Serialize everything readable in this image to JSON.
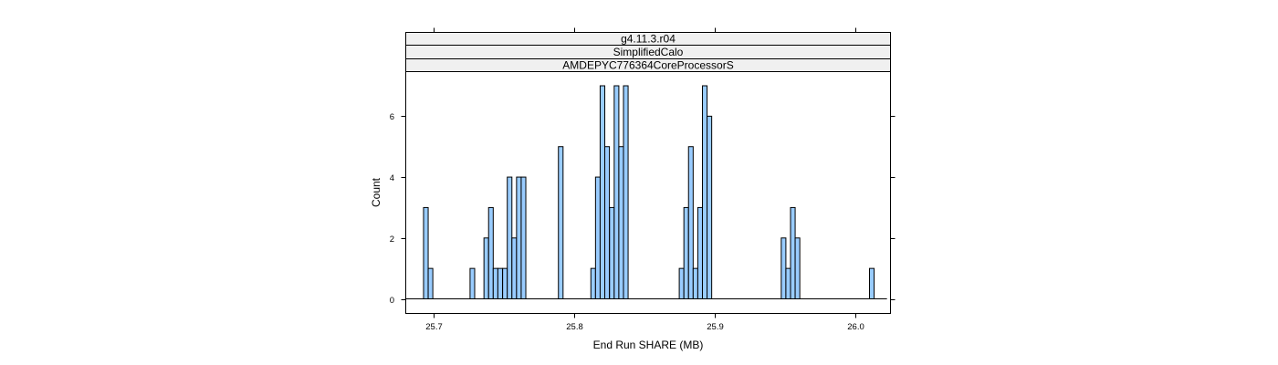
{
  "chart_data": {
    "type": "bar",
    "subtype": "histogram",
    "strips": [
      "g4.11.3.r04",
      "SimplifiedCalo",
      "AMDEPYC776364CoreProcessorS"
    ],
    "xlabel": "End Run SHARE (MB)",
    "ylabel": "Count",
    "xlim": [
      25.68,
      26.025
    ],
    "ylim": [
      0,
      7
    ],
    "x_ticks": [
      25.7,
      25.8,
      25.9,
      26.0
    ],
    "x_tick_labels": [
      "25.7",
      "25.8",
      "25.9",
      "26.0"
    ],
    "y_ticks": [
      0,
      2,
      4,
      6
    ],
    "y_tick_labels": [
      "0",
      "2",
      "4",
      "6"
    ],
    "bin_width": 0.0033,
    "baseline_range": [
      25.6795,
      26.0225
    ],
    "bins": [
      {
        "x": 25.6943,
        "count": 3
      },
      {
        "x": 25.6976,
        "count": 1
      },
      {
        "x": 25.7274,
        "count": 1
      },
      {
        "x": 25.7373,
        "count": 2
      },
      {
        "x": 25.7406,
        "count": 3
      },
      {
        "x": 25.7439,
        "count": 1
      },
      {
        "x": 25.7472,
        "count": 1
      },
      {
        "x": 25.7506,
        "count": 1
      },
      {
        "x": 25.7539,
        "count": 4
      },
      {
        "x": 25.7572,
        "count": 2
      },
      {
        "x": 25.7605,
        "count": 4
      },
      {
        "x": 25.7638,
        "count": 4
      },
      {
        "x": 25.7903,
        "count": 5
      },
      {
        "x": 25.8134,
        "count": 1
      },
      {
        "x": 25.8167,
        "count": 4
      },
      {
        "x": 25.82,
        "count": 7
      },
      {
        "x": 25.8233,
        "count": 5
      },
      {
        "x": 25.8267,
        "count": 3
      },
      {
        "x": 25.83,
        "count": 7
      },
      {
        "x": 25.8333,
        "count": 5
      },
      {
        "x": 25.8366,
        "count": 7
      },
      {
        "x": 25.8763,
        "count": 1
      },
      {
        "x": 25.8796,
        "count": 3
      },
      {
        "x": 25.8829,
        "count": 5
      },
      {
        "x": 25.8862,
        "count": 1
      },
      {
        "x": 25.8895,
        "count": 3
      },
      {
        "x": 25.8928,
        "count": 7
      },
      {
        "x": 25.8961,
        "count": 6
      },
      {
        "x": 25.9489,
        "count": 2
      },
      {
        "x": 25.9522,
        "count": 1
      },
      {
        "x": 25.9555,
        "count": 3
      },
      {
        "x": 25.9588,
        "count": 2
      },
      {
        "x": 26.0117,
        "count": 1
      }
    ],
    "colors": {
      "bar_fill": "#99ccff",
      "bar_stroke": "#000000",
      "strip_fill": "#f0f0f0",
      "frame": "#000000"
    }
  }
}
